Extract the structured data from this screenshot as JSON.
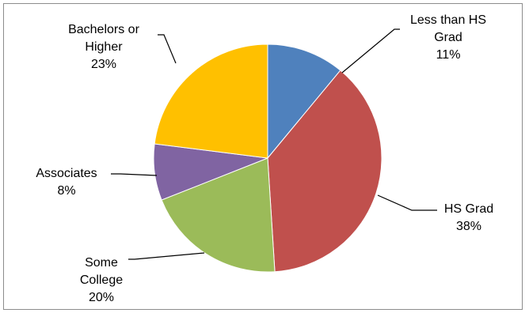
{
  "chart_data": {
    "type": "pie",
    "slices": [
      {
        "label": "Less than HS Grad",
        "display_lines": [
          "Less than HS",
          "Grad"
        ],
        "value": 11,
        "value_label": "11%",
        "color": "#4F81BD"
      },
      {
        "label": "HS Grad",
        "display_lines": [
          "HS Grad"
        ],
        "value": 38,
        "value_label": "38%",
        "color": "#C0504D"
      },
      {
        "label": "Some College",
        "display_lines": [
          "Some",
          "College"
        ],
        "value": 20,
        "value_label": "20%",
        "color": "#9BBB59"
      },
      {
        "label": "Associates",
        "display_lines": [
          "Associates"
        ],
        "value": 8,
        "value_label": "8%",
        "color": "#8064A2"
      },
      {
        "label": "Bachelors or Higher",
        "display_lines": [
          "Bachelors or",
          "Higher"
        ],
        "value": 23,
        "value_label": "23%",
        "color": "#FFC000"
      }
    ],
    "start_angle": "12 o'clock",
    "direction": "clockwise",
    "legend": "none",
    "data_labels": "outside with leader lines"
  }
}
